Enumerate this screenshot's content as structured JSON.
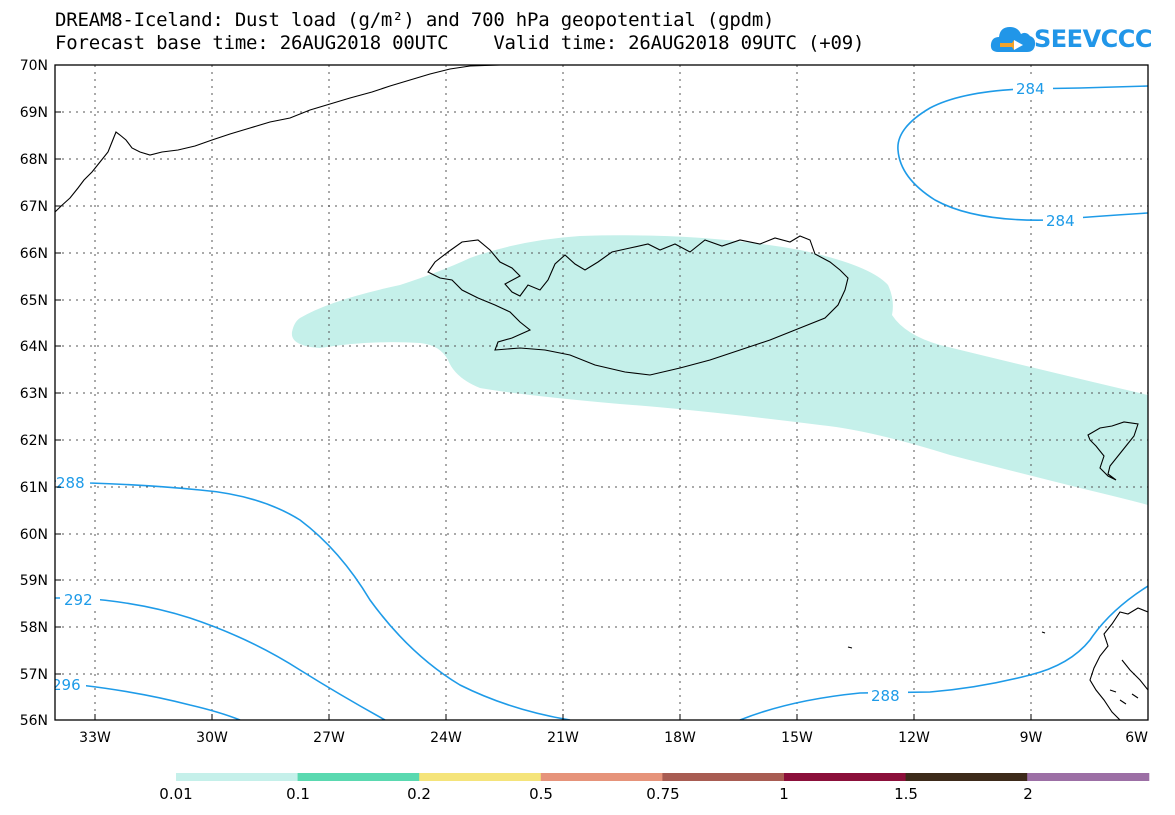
{
  "title_line1": "DREAM8-Iceland: Dust load (g/m²) and 700 hPa geopotential (gpdm)",
  "title_line2": "Forecast base time: 26AUG2018 00UTC    Valid time: 26AUG2018 09UTC (+09)",
  "logo_text": "SEEVCCC",
  "lat_labels": [
    "70N",
    "69N",
    "68N",
    "67N",
    "66N",
    "65N",
    "64N",
    "63N",
    "62N",
    "61N",
    "60N",
    "59N",
    "58N",
    "57N",
    "56N"
  ],
  "lon_labels": [
    "33W",
    "30W",
    "27W",
    "24W",
    "21W",
    "18W",
    "15W",
    "12W",
    "9W",
    "6W"
  ],
  "contour_labels": {
    "c284_top": "284",
    "c284_bottom": "284",
    "c288_left": "288",
    "c292_left": "292",
    "c296_left": "296",
    "c288_right": "288"
  },
  "legend": {
    "colors": [
      "#c5f0ea",
      "#5ad9b0",
      "#f5e47a",
      "#e6937a",
      "#a85c52",
      "#8b0f3a",
      "#3d2a1a",
      "#9c6fa5"
    ],
    "labels": [
      "0.01",
      "0.1",
      "0.2",
      "0.5",
      "0.75",
      "1",
      "1.5",
      "2"
    ]
  },
  "colors": {
    "contour": "#1e9be8",
    "dust_fill": "#c5f0ea",
    "coast": "#000000"
  }
}
